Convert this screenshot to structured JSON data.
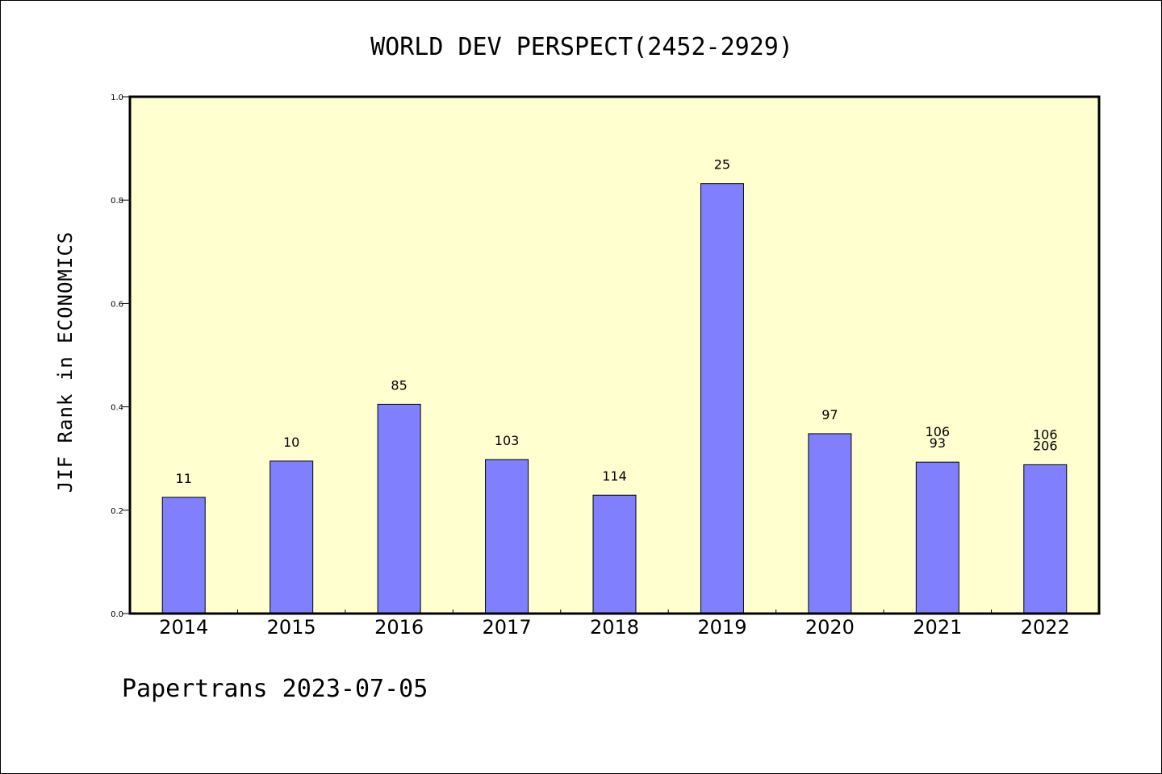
{
  "chart_data": {
    "type": "bar",
    "title": "WORLD DEV PERSPECT(2452-2929)",
    "ylabel": "JIF Rank in ECONOMICS",
    "xlabel": "",
    "ylim": [
      0,
      1.0
    ],
    "yticks": [
      "0.0",
      "0.2",
      "0.4",
      "0.6",
      "0.8",
      "1.0"
    ],
    "categories": [
      "2014",
      "2015",
      "2016",
      "2017",
      "2018",
      "2019",
      "2020",
      "2021",
      "2022"
    ],
    "values": [
      0.225,
      0.295,
      0.405,
      0.298,
      0.229,
      0.832,
      0.348,
      0.293,
      0.288
    ],
    "data_labels": [
      [
        "11"
      ],
      [
        "10"
      ],
      [
        "85"
      ],
      [
        "103"
      ],
      [
        "114"
      ],
      [
        "25"
      ],
      [
        "97"
      ],
      [
        "106",
        "93"
      ],
      [
        "106",
        "206"
      ]
    ],
    "grid": false,
    "colors": {
      "plot_background": "#ffffd0",
      "bar_fill": "#8080ff",
      "bar_stroke": "#000000",
      "axis": "#000000"
    }
  },
  "footer": {
    "text": "Papertrans 2023-07-05"
  }
}
